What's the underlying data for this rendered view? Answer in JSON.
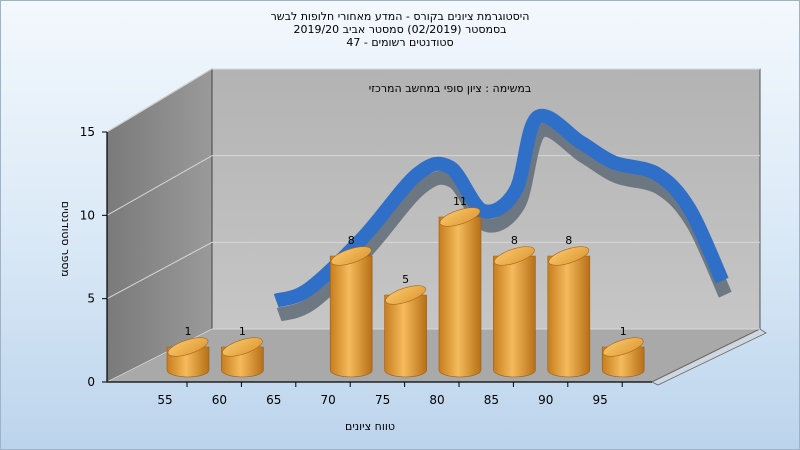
{
  "chart_data": {
    "type": "bar",
    "title_lines": [
      "היסטוגרמת ציונים בקורס - המדע מאחורי חלופות לבשר",
      "בסמסטר (02/2019) סמסטר אביב 2019/20",
      "סטודנטים רשומים - 47"
    ],
    "inner_title": "במשימה : ציון סופי במחשב המרכזי",
    "xlabel": "טווח ציונים",
    "ylabel": "מספר סטודנטים",
    "x_ticks": [
      "55",
      "60",
      "65",
      "70",
      "75",
      "80",
      "85",
      "90",
      "95"
    ],
    "y_ticks": [
      "0",
      "5",
      "10",
      "15"
    ],
    "ylim": [
      0,
      15
    ],
    "bars": [
      {
        "x": 55,
        "value": 1
      },
      {
        "x": 60,
        "value": 1
      },
      {
        "x": 70,
        "value": 8
      },
      {
        "x": 75,
        "value": 5
      },
      {
        "x": 80,
        "value": 11
      },
      {
        "x": 85,
        "value": 8
      },
      {
        "x": 90,
        "value": 8
      },
      {
        "x": 95,
        "value": 1
      }
    ],
    "curve": [
      {
        "x": 62,
        "y": 2.0
      },
      {
        "x": 65,
        "y": 2.7
      },
      {
        "x": 70,
        "y": 5.8
      },
      {
        "x": 75,
        "y": 9.6
      },
      {
        "x": 78,
        "y": 10.0
      },
      {
        "x": 81,
        "y": 7.4
      },
      {
        "x": 84,
        "y": 8.6
      },
      {
        "x": 86,
        "y": 13.0
      },
      {
        "x": 90,
        "y": 11.5
      },
      {
        "x": 93,
        "y": 10.3
      },
      {
        "x": 97,
        "y": 9.6
      },
      {
        "x": 100,
        "y": 7.5
      },
      {
        "x": 103,
        "y": 3.2
      }
    ],
    "colors": {
      "bar": "#e8a33c",
      "curve": "#2f6fc8",
      "wall": "#8c8c8c",
      "back": "#bdbdbd",
      "floor": "#a8a8a8"
    },
    "grid": true
  }
}
